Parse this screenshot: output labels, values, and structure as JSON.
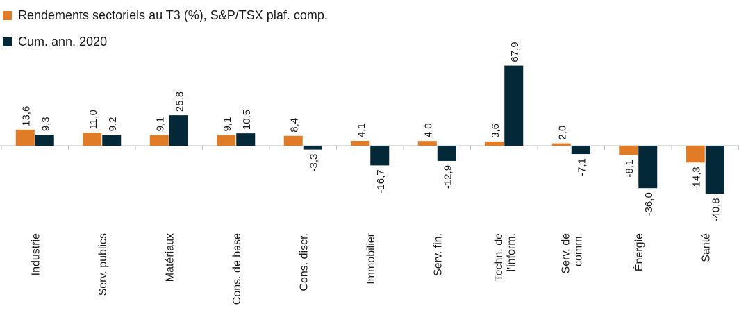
{
  "colors": {
    "series1": "#e07b28",
    "series2": "#032838",
    "axis": "#bfbfbf",
    "text": "#1c1c1c"
  },
  "chart_data": {
    "type": "bar",
    "title": "",
    "xlabel": "",
    "ylabel": "",
    "legend_position": "top-left",
    "grid": false,
    "ylim": [
      -50,
      75
    ],
    "categories": [
      [
        "Industrie"
      ],
      [
        "Serv. publics"
      ],
      [
        "Matériaux"
      ],
      [
        "Cons. de base"
      ],
      [
        "Cons. discr."
      ],
      [
        "Immobilier"
      ],
      [
        "Serv. fin."
      ],
      [
        "Techn. de",
        "l'inform."
      ],
      [
        "Serv. de",
        "comm."
      ],
      [
        "Énergie"
      ],
      [
        "Santé"
      ]
    ],
    "series": [
      {
        "name": "Rendements sectoriels au T3 (%), S&P/TSX plaf. comp.",
        "values": [
          13.6,
          11.0,
          9.1,
          9.1,
          8.4,
          4.1,
          4.0,
          3.6,
          2.0,
          -8.1,
          -14.3
        ],
        "labels": [
          "13,6",
          "11,0",
          "9,1",
          "9,1",
          "8,4",
          "4,1",
          "4,0",
          "3,6",
          "2,0",
          "-8,1",
          "-14,3"
        ]
      },
      {
        "name": "Cum. ann. 2020",
        "values": [
          9.3,
          9.2,
          25.8,
          10.5,
          -3.3,
          -16.7,
          -12.9,
          67.9,
          -7.1,
          -36.0,
          -40.8
        ],
        "labels": [
          "9,3",
          "9,2",
          "25,8",
          "10,5",
          "-3,3",
          "-16,7",
          "-12,9",
          "67,9",
          "-7,1",
          "-36,0",
          "-40,8"
        ]
      }
    ]
  }
}
